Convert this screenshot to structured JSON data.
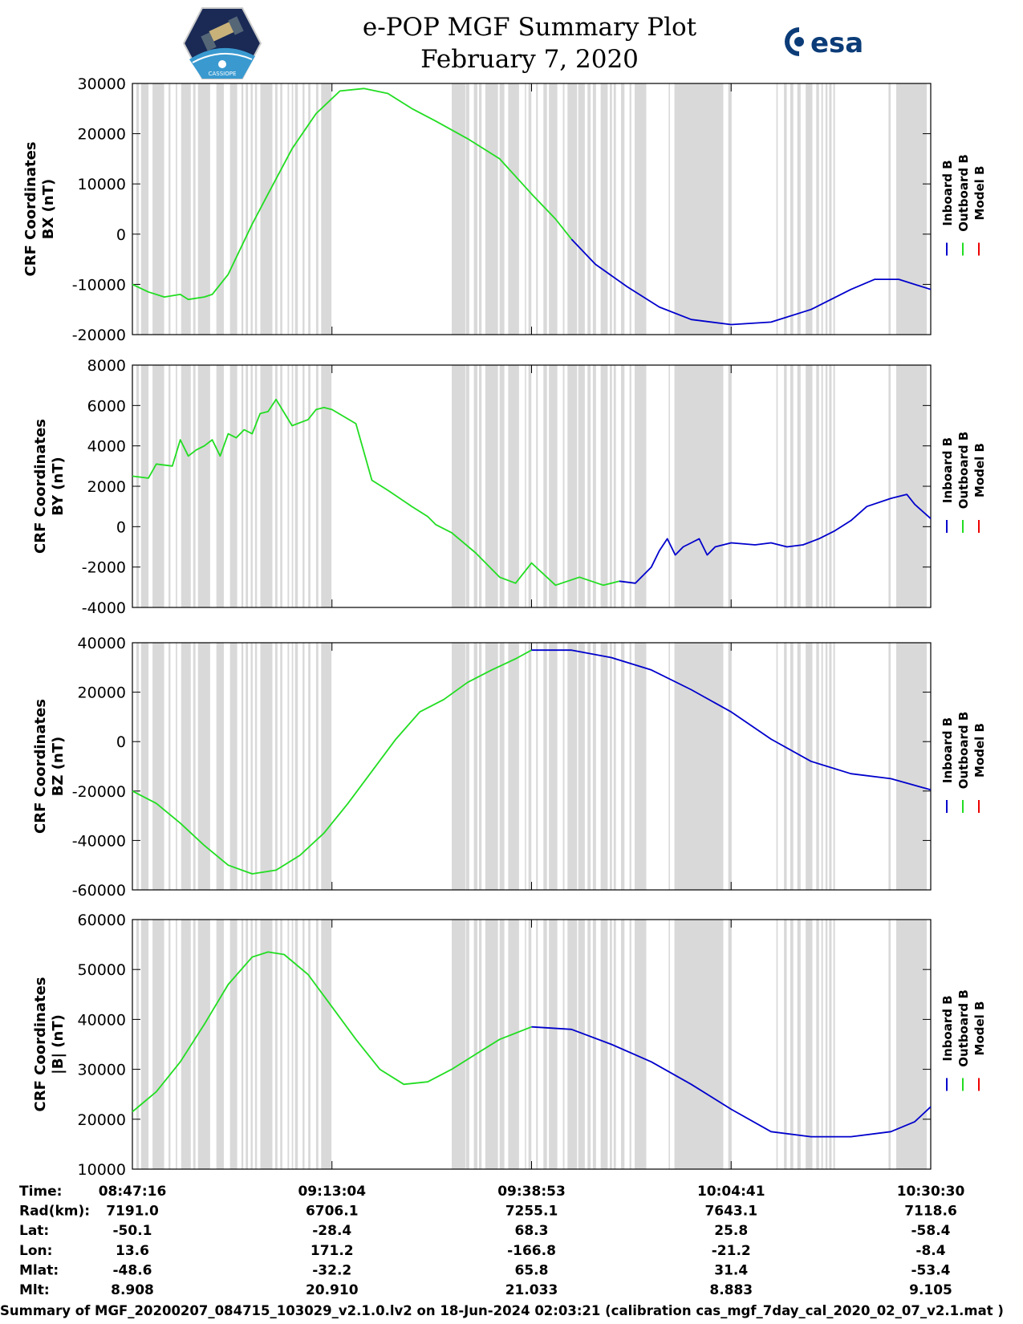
{
  "header": {
    "title_line1": "e-POP MGF Summary Plot",
    "title_line2": "February 7, 2020",
    "logo_right_text": "esa",
    "logo_left_text": "CASSIOPE"
  },
  "colors": {
    "inboard": "#0000cc",
    "outboard": "#22dd22",
    "model": "#ee0000",
    "gap": "#d9d9d9"
  },
  "chart_data": [
    {
      "type": "line",
      "id": "bx",
      "ylabel": [
        "CRF Coordinates",
        "BX (nT)"
      ],
      "ylim": [
        -20000,
        30000
      ],
      "yticks": [
        "30000",
        "20000",
        "10000",
        "0",
        "-10000",
        "-20000"
      ],
      "legend": [
        "Inboard B",
        "Outboard B",
        "Model B"
      ],
      "series": [
        {
          "name": "Outboard B",
          "x": [
            0,
            2,
            4,
            6,
            7,
            9,
            10,
            12,
            15,
            17,
            20,
            23,
            26,
            29,
            32,
            35,
            38,
            42,
            46,
            50,
            53,
            55
          ],
          "y": [
            -10000,
            -11500,
            -12500,
            -12000,
            -13000,
            -12500,
            -12000,
            -8000,
            2000,
            8000,
            17000,
            24000,
            28500,
            29000,
            28000,
            25000,
            22500,
            19000,
            15000,
            8000,
            3000,
            -1000
          ]
        },
        {
          "name": "Inboard B",
          "x": [
            55,
            58,
            62,
            66,
            70,
            75,
            80,
            85,
            90,
            93,
            96,
            100
          ],
          "y": [
            -1000,
            -6000,
            -10500,
            -14500,
            -17000,
            -18000,
            -17500,
            -15000,
            -11000,
            -9000,
            -9000,
            -11000
          ]
        }
      ]
    },
    {
      "type": "line",
      "id": "by",
      "ylabel": [
        "CRF Coordinates",
        "BY (nT)"
      ],
      "ylim": [
        -4000,
        8000
      ],
      "yticks": [
        "8000",
        "6000",
        "4000",
        "2000",
        "0",
        "-2000",
        "-4000"
      ],
      "legend": [
        "Inboard B",
        "Outboard B",
        "Model B"
      ],
      "series": [
        {
          "name": "Outboard B",
          "x": [
            0,
            2,
            3,
            5,
            6,
            7,
            8,
            9,
            10,
            11,
            12,
            13,
            14,
            15,
            16,
            17,
            18,
            20,
            22,
            23,
            24,
            25,
            28,
            30,
            32,
            35,
            37,
            38,
            40,
            43,
            46,
            48,
            50,
            53,
            56,
            59,
            61
          ],
          "y": [
            2500,
            2400,
            3100,
            3000,
            4300,
            3500,
            3800,
            4000,
            4300,
            3500,
            4600,
            4400,
            4800,
            4600,
            5600,
            5700,
            6300,
            5000,
            5300,
            5800,
            5900,
            5800,
            5100,
            2300,
            1800,
            1000,
            500,
            100,
            -300,
            -1300,
            -2500,
            -2800,
            -1800,
            -2900,
            -2500,
            -2900,
            -2700
          ]
        },
        {
          "name": "Inboard B",
          "x": [
            61,
            63,
            65,
            66,
            67,
            68,
            69,
            70,
            71,
            72,
            73,
            75,
            78,
            80,
            82,
            84,
            86,
            88,
            90,
            92,
            95,
            97,
            98,
            100
          ],
          "y": [
            -2700,
            -2800,
            -2000,
            -1200,
            -600,
            -1400,
            -1000,
            -800,
            -600,
            -1400,
            -1000,
            -800,
            -900,
            -800,
            -1000,
            -900,
            -600,
            -200,
            300,
            1000,
            1400,
            1600,
            1100,
            400
          ]
        }
      ]
    },
    {
      "type": "line",
      "id": "bz",
      "ylabel": [
        "CRF Coordinates",
        "BZ (nT)"
      ],
      "ylim": [
        -60000,
        40000
      ],
      "yticks": [
        "40000",
        "20000",
        "0",
        "-20000",
        "-40000",
        "-60000"
      ],
      "legend": [
        "Inboard B",
        "Outboard B",
        "Model B"
      ],
      "series": [
        {
          "name": "Outboard B",
          "x": [
            0,
            3,
            6,
            9,
            12,
            15,
            18,
            21,
            24,
            27,
            30,
            33,
            36,
            39,
            42,
            45,
            48,
            50
          ],
          "y": [
            -20000,
            -25000,
            -33000,
            -42000,
            -50000,
            -53500,
            -52000,
            -46000,
            -37000,
            -25000,
            -12000,
            1000,
            12000,
            17000,
            24000,
            29000,
            33500,
            37000
          ]
        },
        {
          "name": "Inboard B",
          "x": [
            50,
            55,
            60,
            65,
            70,
            75,
            80,
            85,
            90,
            95,
            100
          ],
          "y": [
            37000,
            37000,
            34000,
            29000,
            21000,
            12000,
            1000,
            -8000,
            -13000,
            -15000,
            -19500
          ]
        }
      ]
    },
    {
      "type": "line",
      "id": "bt",
      "ylabel": [
        "CRF Coordinates",
        "|B| (nT)"
      ],
      "ylim": [
        10000,
        60000
      ],
      "yticks": [
        "60000",
        "50000",
        "40000",
        "30000",
        "20000",
        "10000"
      ],
      "legend": [
        "Inboard B",
        "Outboard B",
        "Model B"
      ],
      "series": [
        {
          "name": "Outboard B",
          "x": [
            0,
            3,
            6,
            9,
            12,
            15,
            17,
            19,
            22,
            25,
            28,
            31,
            34,
            37,
            40,
            43,
            46,
            50
          ],
          "y": [
            21500,
            25500,
            31500,
            39000,
            47000,
            52500,
            53500,
            53000,
            49000,
            42500,
            36000,
            30000,
            27000,
            27500,
            30000,
            33000,
            36000,
            38500
          ]
        },
        {
          "name": "Inboard B",
          "x": [
            50,
            55,
            60,
            65,
            70,
            75,
            80,
            85,
            90,
            95,
            98,
            100
          ],
          "y": [
            38500,
            38000,
            35000,
            31500,
            27000,
            22000,
            17500,
            16500,
            16500,
            17500,
            19500,
            22500
          ]
        }
      ]
    }
  ],
  "table": {
    "labels": [
      "Time:",
      "Rad(km):",
      "Lat:",
      "Lon:",
      "Mlat:",
      "Mlt:"
    ],
    "columns": [
      [
        "08:47:16",
        "7191.0",
        "-50.1",
        "13.6",
        "-48.6",
        "8.908"
      ],
      [
        "09:13:04",
        "6706.1",
        "-28.4",
        "171.2",
        "-32.2",
        "20.910"
      ],
      [
        "09:38:53",
        "7255.1",
        "68.3",
        "-166.8",
        "65.8",
        "21.033"
      ],
      [
        "10:04:41",
        "7643.1",
        "25.8",
        "-21.2",
        "31.4",
        "8.883"
      ],
      [
        "10:30:30",
        "7118.6",
        "-58.4",
        "-8.4",
        "-53.4",
        "9.105"
      ]
    ]
  },
  "footer": "Summary of MGF_20200207_084715_103029_v2.1.0.lv2 on 18-Jun-2024 02:03:21 (calibration cas_mgf_7day_cal_2020_02_07_v2.1.mat )"
}
